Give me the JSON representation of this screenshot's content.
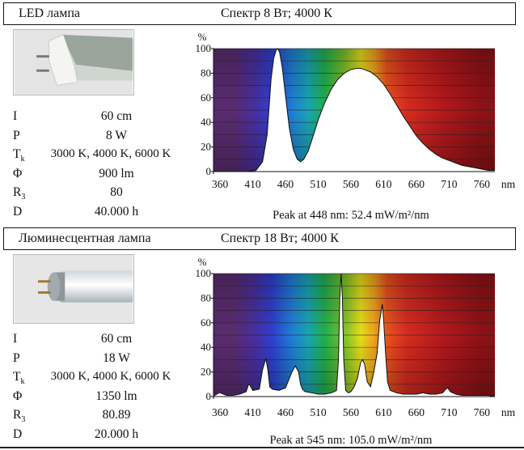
{
  "panels": [
    {
      "lamp_title": "LED лампа",
      "spectrum_title": "Спектр 8 Вт; 4000 К",
      "photo": "led-tube-photo",
      "params": [
        {
          "name": "I",
          "value": "60 cm"
        },
        {
          "name": "P",
          "value": "8 W"
        },
        {
          "name": "T",
          "sub": "k",
          "value": "3000 K, 4000 K, 6000 K"
        },
        {
          "name": "Φ",
          "value": "900 lm"
        },
        {
          "name": "R",
          "sub": "3",
          "value": "80"
        },
        {
          "name": "D",
          "value": "40.000 h"
        }
      ],
      "peak_text": "Peak at 448 nm: 52.4 mW/m²/nm"
    },
    {
      "lamp_title": "Люминесцентная лампа",
      "spectrum_title": "Спектр 18 Вт; 4000 К",
      "photo": "fluorescent-tube-photo",
      "params": [
        {
          "name": "I",
          "value": "60 cm"
        },
        {
          "name": "P",
          "value": "18 W"
        },
        {
          "name": "T",
          "sub": "k",
          "value": "3000 K, 4000 K, 6000 K"
        },
        {
          "name": "Φ",
          "value": "1350 lm"
        },
        {
          "name": "R",
          "sub": "3",
          "value": "80.89"
        },
        {
          "name": "D",
          "value": "20.000 h"
        }
      ],
      "peak_text": "Peak at 545 nm: 105.0 mW/m²/nm"
    }
  ],
  "chart_data": [
    {
      "type": "area",
      "ylabel": "%",
      "xlabel": "nm",
      "x_ticks": [
        360,
        410,
        460,
        510,
        560,
        610,
        660,
        710,
        760
      ],
      "y_ticks": [
        0,
        20,
        40,
        60,
        80,
        100
      ],
      "xlim": [
        350,
        780
      ],
      "ylim": [
        0,
        100
      ],
      "background": "visible-spectrum-gradient",
      "grid": "horizontal",
      "series": [
        {
          "x": [
            360,
            400,
            415,
            425,
            432,
            438,
            442,
            446,
            448,
            451,
            455,
            460,
            466,
            472,
            478,
            483,
            488,
            495,
            503,
            510,
            520,
            530,
            540,
            550,
            560,
            570,
            575,
            580,
            590,
            600,
            610,
            620,
            630,
            640,
            650,
            660,
            670,
            680,
            690,
            700,
            710,
            720,
            730,
            740,
            750,
            760,
            770,
            780
          ],
          "y": [
            0,
            0,
            1,
            8,
            30,
            75,
            92,
            99,
            100,
            97,
            85,
            62,
            35,
            18,
            10,
            8,
            10,
            17,
            30,
            42,
            56,
            67,
            75,
            80,
            83,
            84,
            84,
            83,
            81,
            77,
            71,
            63,
            54,
            45,
            37,
            29,
            23,
            18,
            14,
            11,
            9,
            7,
            5,
            4,
            3,
            2,
            1,
            1
          ]
        }
      ]
    },
    {
      "type": "area",
      "ylabel": "%",
      "xlabel": "nm",
      "x_ticks": [
        360,
        410,
        460,
        510,
        560,
        610,
        660,
        710,
        760
      ],
      "y_ticks": [
        0,
        20,
        40,
        60,
        80,
        100
      ],
      "xlim": [
        350,
        780
      ],
      "ylim": [
        0,
        100
      ],
      "background": "visible-spectrum-gradient",
      "grid": "horizontal",
      "series": [
        {
          "x": [
            360,
            370,
            380,
            390,
            400,
            403,
            405,
            407,
            410,
            420,
            425,
            430,
            433,
            436,
            440,
            450,
            460,
            470,
            475,
            480,
            483,
            486,
            490,
            500,
            510,
            520,
            530,
            538,
            541,
            543,
            545,
            547,
            549,
            552,
            556,
            560,
            565,
            570,
            575,
            578,
            581,
            585,
            590,
            595,
            600,
            604,
            608,
            610,
            613,
            616,
            620,
            630,
            640,
            650,
            660,
            670,
            680,
            690,
            700,
            705,
            708,
            712,
            720,
            730,
            740,
            750,
            760,
            770,
            780
          ],
          "y": [
            3,
            1,
            1,
            2,
            4,
            9,
            10,
            8,
            5,
            6,
            22,
            31,
            22,
            8,
            6,
            5,
            7,
            20,
            25,
            20,
            10,
            6,
            4,
            3,
            2,
            2,
            3,
            5,
            30,
            80,
            100,
            80,
            30,
            5,
            3,
            4,
            8,
            15,
            28,
            30,
            26,
            12,
            8,
            20,
            35,
            62,
            75,
            62,
            35,
            12,
            5,
            3,
            2,
            2,
            2,
            3,
            2,
            2,
            3,
            6,
            7,
            4,
            2,
            1,
            1,
            1,
            1,
            1,
            0
          ]
        }
      ]
    }
  ]
}
